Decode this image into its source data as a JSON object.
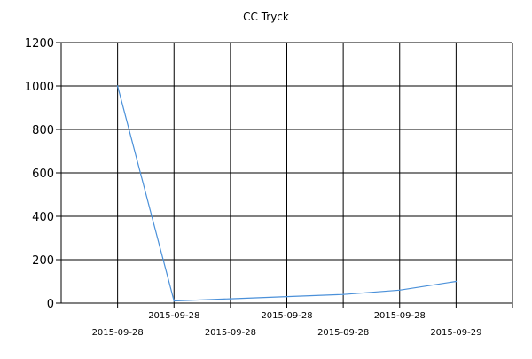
{
  "chart_data": {
    "type": "line",
    "title": "CC Tryck",
    "xlabel": "",
    "ylabel": "",
    "ylim": [
      0,
      1200
    ],
    "yticks": [
      0,
      200,
      400,
      600,
      800,
      1000,
      1200
    ],
    "x_tick_labels": [
      "2015-09-28",
      "2015-09-28",
      "2015-09-28",
      "2015-09-28",
      "2015-09-28",
      "2015-09-28",
      "2015-09-29"
    ],
    "grid": true,
    "series": [
      {
        "values": [
          1000,
          10,
          20,
          30,
          40,
          60,
          100
        ],
        "color": "#4a90d9"
      }
    ]
  }
}
